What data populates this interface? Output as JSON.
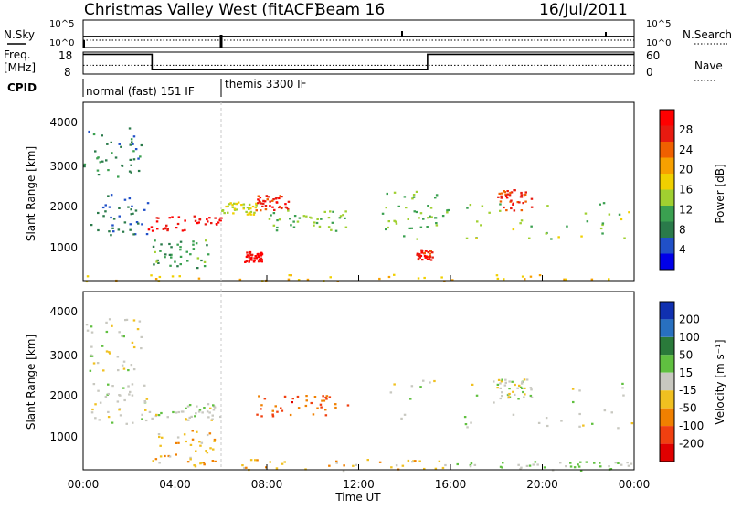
{
  "header": {
    "station": "Christmas Valley West (fitACF)",
    "beam": "Beam 16",
    "date": "16/Jul/2011"
  },
  "noise_panel": {
    "left_label": "N.Sky",
    "right_label": "N.Search",
    "left_ticks": [
      "10^5",
      "10^0"
    ],
    "right_ticks": [
      "10^5",
      "10^0"
    ]
  },
  "freq_panel": {
    "left_label_1": "Freq.",
    "left_label_2": "[MHz]",
    "right_label": "Nave",
    "left_ticks": [
      "18",
      "8"
    ],
    "right_ticks": [
      "60",
      "0"
    ]
  },
  "cpid": {
    "label": "CPID",
    "modes": [
      "normal (fast) 151 IF",
      "themis 3300 IF"
    ]
  },
  "x_axis": {
    "label": "Time UT",
    "ticks": [
      "00:00",
      "04:00",
      "08:00",
      "12:00",
      "16:00",
      "20:00",
      "00:00"
    ]
  },
  "power_panel": {
    "ylabel": "Slant Range [km]",
    "yticks": [
      "4000",
      "3000",
      "2000",
      "1000"
    ],
    "colorbar_label": "Power [dB]",
    "colorbar_ticks": [
      "28",
      "24",
      "20",
      "16",
      "12",
      "8",
      "4"
    ],
    "colors": [
      "#0000e8",
      "#2050c8",
      "#2a7a4a",
      "#3aa050",
      "#a0d030",
      "#f0d000",
      "#f7a000",
      "#f06000",
      "#e81a10",
      "#ff0000"
    ]
  },
  "velocity_panel": {
    "ylabel": "Slant Range [km]",
    "yticks": [
      "4000",
      "3000",
      "2000",
      "1000"
    ],
    "colorbar_label": "Velocity [m s⁻¹]",
    "colorbar_ticks": [
      "200",
      "100",
      "50",
      "15",
      "-15",
      "-50",
      "-100",
      "-200"
    ],
    "colors": [
      "#1030b0",
      "#2870c0",
      "#2a7a3a",
      "#60c040",
      "#c8c8c0",
      "#f0c020",
      "#f08000",
      "#f04010",
      "#e00000"
    ]
  },
  "chart_data": [
    {
      "type": "line",
      "title": "N.Sky / N.Search",
      "x": [
        "00:00",
        "04:00",
        "08:00",
        "12:00",
        "16:00",
        "20:00",
        "00:00"
      ],
      "series": [
        {
          "name": "N.Sky",
          "values": [
            2,
            2,
            3,
            2,
            2,
            2,
            2
          ]
        },
        {
          "name": "N.Search",
          "values": [
            1,
            1,
            1,
            1,
            1,
            1,
            1
          ]
        }
      ],
      "ylim": [
        1,
        100000
      ]
    },
    {
      "type": "line",
      "title": "Freq. [MHz] / Nave",
      "x_hours": [
        0,
        3,
        3,
        15,
        15,
        24
      ],
      "series": [
        {
          "name": "Freq.",
          "values": [
            17,
            17,
            10,
            10,
            17,
            17
          ]
        },
        {
          "name": "Nave",
          "values": [
            12,
            12,
            12,
            12,
            12,
            12
          ]
        }
      ],
      "ylim": [
        8,
        18
      ]
    },
    {
      "type": "heatmap",
      "title": "Power [dB]",
      "xlabel": "Time UT",
      "ylabel": "Slant Range [km]",
      "xlim_hours": [
        0,
        24
      ],
      "ylim_km": [
        180,
        4500
      ],
      "colorbar_range": [
        0,
        30
      ],
      "features": [
        {
          "hours": [
            0.0,
            2.5
          ],
          "km": [
            2600,
            3900
          ],
          "dB": 8
        },
        {
          "hours": [
            0.3,
            2.8
          ],
          "km": [
            1300,
            2300
          ],
          "dB": 6
        },
        {
          "hours": [
            2.8,
            6.0
          ],
          "km": [
            1400,
            1800
          ],
          "dB": 27
        },
        {
          "hours": [
            3.0,
            5.5
          ],
          "km": [
            500,
            1200
          ],
          "dB": 10
        },
        {
          "hours": [
            6.0,
            7.5
          ],
          "km": [
            1800,
            2100
          ],
          "dB": 15
        },
        {
          "hours": [
            7.0,
            7.8
          ],
          "km": [
            650,
            900
          ],
          "dB": 28
        },
        {
          "hours": [
            7.5,
            9.0
          ],
          "km": [
            1900,
            2300
          ],
          "dB": 26
        },
        {
          "hours": [
            8.0,
            11.5
          ],
          "km": [
            1400,
            1900
          ],
          "dB": 12
        },
        {
          "hours": [
            13.0,
            15.5
          ],
          "km": [
            1200,
            2400
          ],
          "dB": 12
        },
        {
          "hours": [
            14.5,
            15.2
          ],
          "km": [
            700,
            950
          ],
          "dB": 26
        },
        {
          "hours": [
            15.5,
            24.0
          ],
          "km": [
            1200,
            2100
          ],
          "dB": 13
        },
        {
          "hours": [
            18.0,
            19.5
          ],
          "km": [
            1900,
            2400
          ],
          "dB": 25
        },
        {
          "hours": [
            0.0,
            24.0
          ],
          "km": [
            180,
            350
          ],
          "dB": 18
        }
      ]
    },
    {
      "type": "heatmap",
      "title": "Velocity [m s⁻¹]",
      "xlabel": "Time UT",
      "ylabel": "Slant Range [km]",
      "xlim_hours": [
        0,
        24
      ],
      "ylim_km": [
        180,
        4500
      ],
      "colorbar_range": [
        -250,
        250
      ],
      "features": [
        {
          "hours": [
            0.0,
            2.5
          ],
          "km": [
            2600,
            3900
          ],
          "v": 0
        },
        {
          "hours": [
            0.3,
            2.8
          ],
          "km": [
            1300,
            2300
          ],
          "v": 0
        },
        {
          "hours": [
            2.8,
            6.0
          ],
          "km": [
            1400,
            1800
          ],
          "v": 0
        },
        {
          "hours": [
            3.0,
            6.0
          ],
          "km": [
            300,
            1200
          ],
          "v": -60
        },
        {
          "hours": [
            7.5,
            11.5
          ],
          "km": [
            1500,
            2000
          ],
          "v": -150
        },
        {
          "hours": [
            13.0,
            24.0
          ],
          "km": [
            1200,
            2400
          ],
          "v": 0
        },
        {
          "hours": [
            18.0,
            19.5
          ],
          "km": [
            1900,
            2400
          ],
          "v": 0
        },
        {
          "hours": [
            4.0,
            16.0
          ],
          "km": [
            180,
            450
          ],
          "v": -60
        },
        {
          "hours": [
            16.0,
            24.0
          ],
          "km": [
            180,
            400
          ],
          "v": 40
        }
      ]
    }
  ]
}
